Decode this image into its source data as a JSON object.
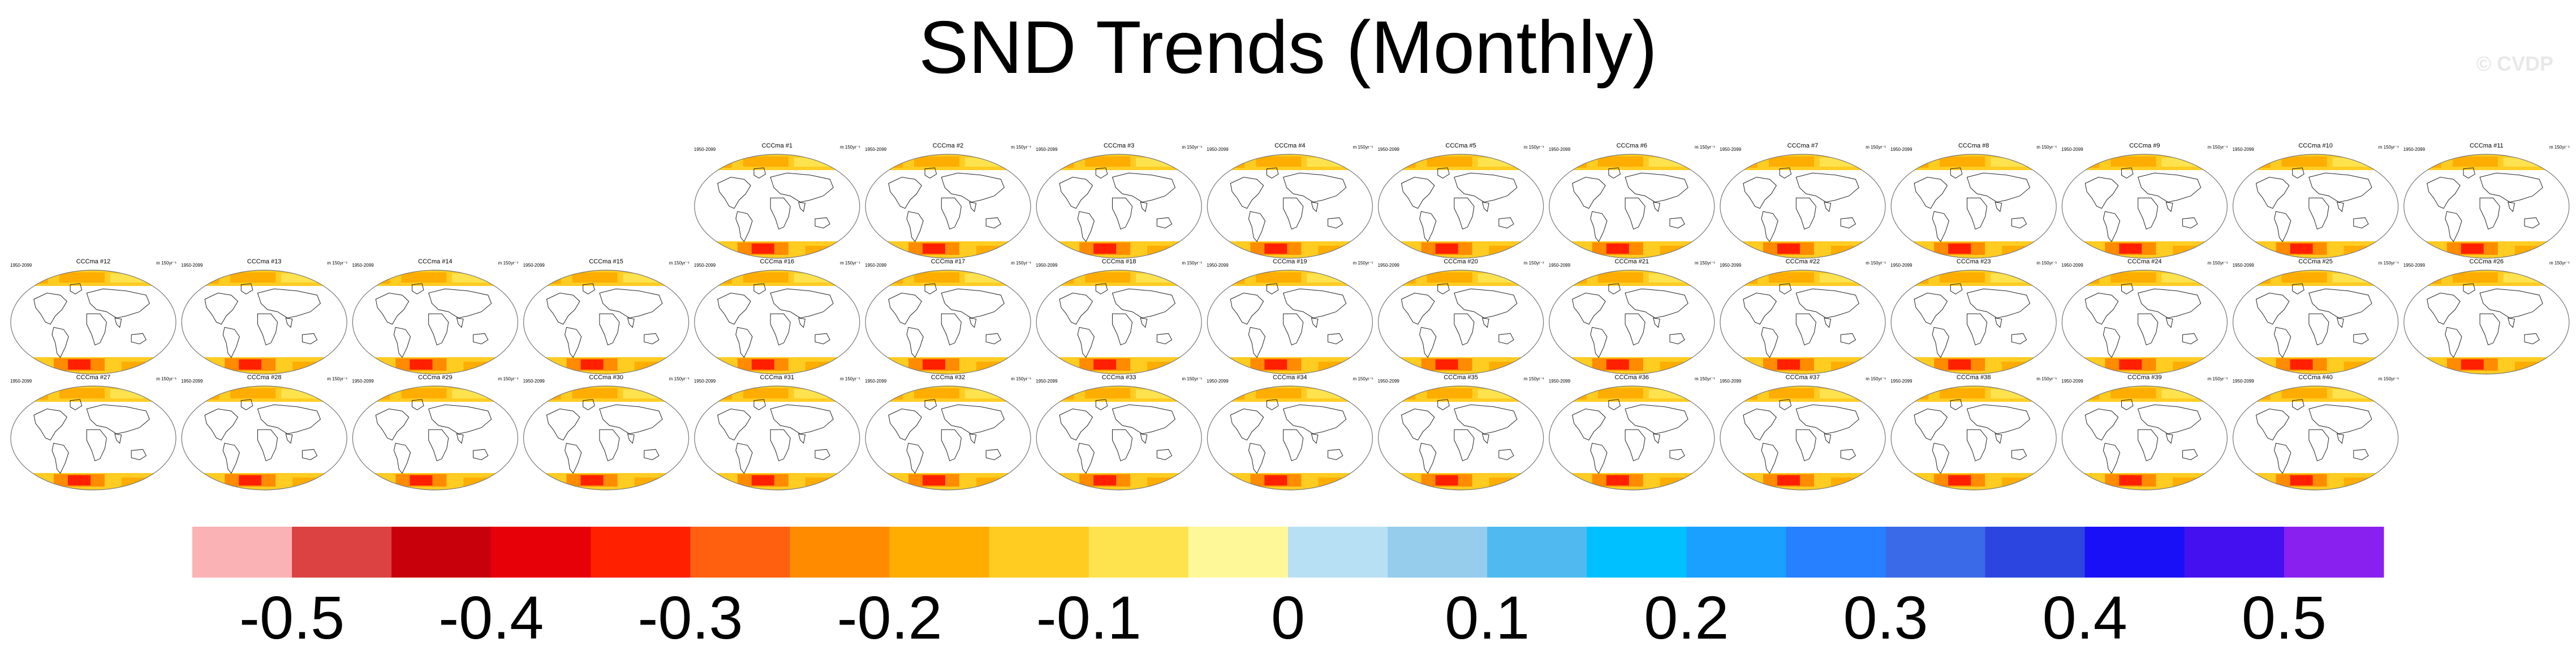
{
  "title": "SND Trends (Monthly)",
  "watermark": "© CVDP",
  "chart_data": {
    "type": "heatmap",
    "title": "SND Trends (Monthly)",
    "description_of_maps": "40 global map panels of snow depth trends, 1950-2099, unit m 150yr^-1",
    "panel_period": "1950-2099",
    "panel_units": "m 150yr⁻¹",
    "panels": [
      "CCCma #1",
      "CCCma #2",
      "CCCma #3",
      "CCCma #4",
      "CCCma #5",
      "CCCma #6",
      "CCCma #7",
      "CCCma #8",
      "CCCma #9",
      "CCCma #10",
      "CCCma #11",
      "CCCma #12",
      "CCCma #13",
      "CCCma #14",
      "CCCma #15",
      "CCCma #16",
      "CCCma #17",
      "CCCma #18",
      "CCCma #19",
      "CCCma #20",
      "CCCma #21",
      "CCCma #22",
      "CCCma #23",
      "CCCma #24",
      "CCCma #25",
      "CCCma #26",
      "CCCma #27",
      "CCCma #28",
      "CCCma #29",
      "CCCma #30",
      "CCCma #31",
      "CCCma #32",
      "CCCma #33",
      "CCCma #34",
      "CCCma #35",
      "CCCma #36",
      "CCCma #37",
      "CCCma #38",
      "CCCma #39",
      "CCCma #40"
    ],
    "colorbar": {
      "colors": [
        "#fbb2b4",
        "#dc4242",
        "#c8000c",
        "#e80008",
        "#ff2000",
        "#ff6010",
        "#ff8c00",
        "#ffad00",
        "#ffcc22",
        "#ffe34e",
        "#fff899",
        "#b8e0f4",
        "#96ccec",
        "#50baf0",
        "#00c0ff",
        "#1aa0ff",
        "#2680ff",
        "#3a6ae8",
        "#2c45e0",
        "#1a10f8",
        "#4510f0",
        "#8a20f0"
      ],
      "tick_labels": [
        "-0.5",
        "-0.4",
        "-0.3",
        "-0.2",
        "-0.1",
        "0",
        "0.1",
        "0.2",
        "0.3",
        "0.4",
        "0.5"
      ],
      "range": [
        -0.55,
        0.55
      ]
    }
  }
}
